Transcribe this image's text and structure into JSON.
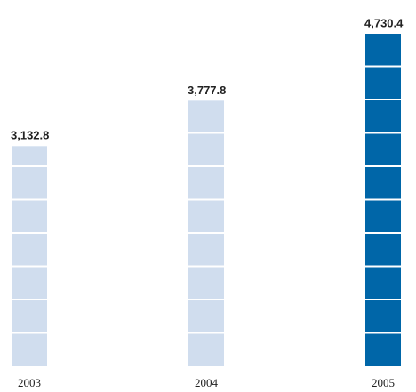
{
  "chart_data": {
    "type": "bar",
    "categories": [
      "2003",
      "2004",
      "2005"
    ],
    "values": [
      3132.8,
      3777.8,
      4730.4
    ],
    "value_labels": [
      "3,132.8",
      "3,777.8",
      "4,730.4"
    ],
    "colors": [
      "#d0ddee",
      "#d0ddee",
      "#0066a8"
    ]
  }
}
